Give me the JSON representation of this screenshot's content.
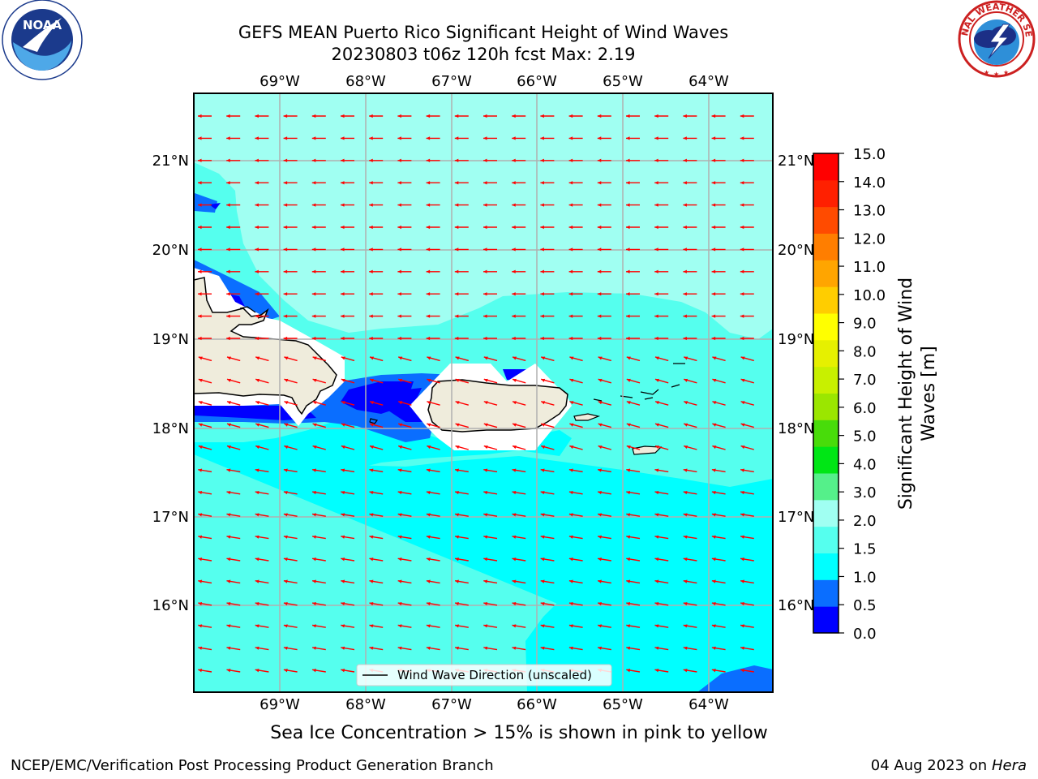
{
  "title": {
    "line1": "GEFS MEAN Puerto Rico Significant Height of Wind Waves",
    "line2": "20230803 t06z 120h fcst   Max: 2.19"
  },
  "map": {
    "lon_labels": [
      "69°W",
      "68°W",
      "67°W",
      "66°W",
      "65°W",
      "64°W"
    ],
    "lat_labels": [
      "21°N",
      "20°N",
      "19°N",
      "18°N",
      "17°N",
      "16°N"
    ],
    "legend_label": "Wind Wave Direction (unscaled)",
    "arrow_color": "#ff0000",
    "land_color": "#efecdc"
  },
  "colorbar": {
    "title": "Significant Height of Wind Waves [m]",
    "ticks": [
      "0.0",
      "0.5",
      "1.0",
      "1.5",
      "2.0",
      "3.0",
      "4.0",
      "5.0",
      "6.0",
      "7.0",
      "8.0",
      "9.0",
      "10.0",
      "11.0",
      "12.0",
      "13.0",
      "14.0",
      "15.0"
    ],
    "colors": [
      "#0000ff",
      "#0a6eff",
      "#00ffff",
      "#55ffee",
      "#a0fff2",
      "#55f08a",
      "#00e615",
      "#48dc0a",
      "#9be600",
      "#c8f000",
      "#e6f000",
      "#ffff00",
      "#ffcd00",
      "#ffa500",
      "#ff7e00",
      "#ff4b00",
      "#ff2000",
      "#ff0000"
    ]
  },
  "caption": "Sea Ice Concentration > 15% is shown in pink to yellow",
  "footer": {
    "left": "NCEP/EMC/Verification Post Processing Product Generation Branch",
    "right_date": "04 Aug 2023 on",
    "right_host": "Hera"
  },
  "logos": {
    "noaa_text": "NOAA",
    "nws_text": "NATIONAL WEATHER SERVICE"
  }
}
